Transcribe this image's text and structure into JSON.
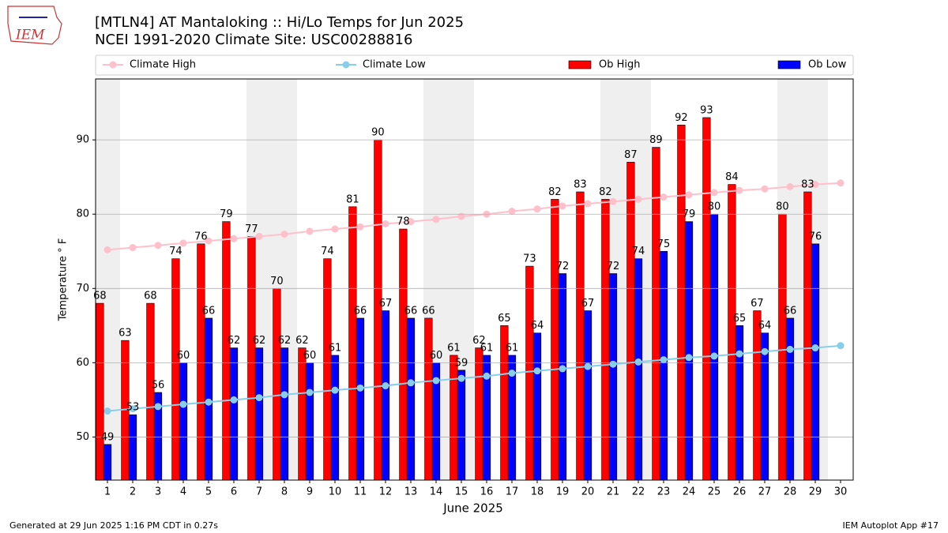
{
  "chart_data": {
    "type": "bar",
    "title": "[MTLN4] AT Mantaloking :: Hi/Lo Temps for Jun 2025",
    "subtitle": "NCEI 1991-2020 Climate Site: USC00288816",
    "logo": "IEM",
    "xlabel": "June 2025",
    "ylabel": "Temperature ° F",
    "footer_left": "Generated at 29 Jun 2025 1:16 PM CDT in 0.27s",
    "footer_right": "IEM Autoplot App #17",
    "categories": [
      1,
      2,
      3,
      4,
      5,
      6,
      7,
      8,
      9,
      10,
      11,
      12,
      13,
      14,
      15,
      16,
      17,
      18,
      19,
      20,
      21,
      22,
      23,
      24,
      25,
      26,
      27,
      28,
      29,
      30
    ],
    "shaded_categories": [
      1,
      7,
      8,
      14,
      15,
      21,
      22,
      28,
      29
    ],
    "shade_color": "#efefef",
    "ylim": [
      44.2,
      98.2
    ],
    "yticks": [
      50,
      60,
      70,
      80,
      90
    ],
    "grid": true,
    "series": [
      {
        "name": "Climate High",
        "type": "line",
        "color": "#ffc0cb",
        "values": [
          75.2,
          75.5,
          75.8,
          76.1,
          76.4,
          76.7,
          77.0,
          77.3,
          77.7,
          78.0,
          78.3,
          78.7,
          79.0,
          79.3,
          79.7,
          80.0,
          80.4,
          80.7,
          81.1,
          81.4,
          81.7,
          82.0,
          82.3,
          82.6,
          82.9,
          83.2,
          83.4,
          83.7,
          84.0,
          84.2
        ]
      },
      {
        "name": "Climate Low",
        "type": "line",
        "color": "#87ceeb",
        "values": [
          53.5,
          53.8,
          54.1,
          54.4,
          54.7,
          55.0,
          55.3,
          55.7,
          56.0,
          56.3,
          56.6,
          56.9,
          57.3,
          57.6,
          57.9,
          58.2,
          58.6,
          58.9,
          59.2,
          59.5,
          59.8,
          60.1,
          60.4,
          60.7,
          60.9,
          61.2,
          61.5,
          61.8,
          62.0,
          62.3
        ]
      },
      {
        "name": "Ob High",
        "type": "bar",
        "color": "#ff0000",
        "values": [
          68,
          63,
          68,
          74,
          76,
          79,
          77,
          70,
          62,
          74,
          81,
          90,
          78,
          66,
          61,
          62,
          65,
          73,
          82,
          83,
          82,
          87,
          89,
          92,
          93,
          84,
          67,
          80,
          83,
          null
        ]
      },
      {
        "name": "Ob Low",
        "type": "bar",
        "color": "#0000ff",
        "values": [
          49,
          53,
          56,
          60,
          66,
          62,
          62,
          62,
          60,
          61,
          66,
          67,
          66,
          60,
          59,
          61,
          61,
          64,
          72,
          67,
          72,
          74,
          75,
          79,
          80,
          65,
          64,
          66,
          76,
          null
        ]
      }
    ]
  }
}
